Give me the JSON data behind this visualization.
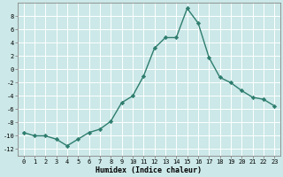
{
  "x": [
    0,
    1,
    2,
    3,
    4,
    5,
    6,
    7,
    8,
    9,
    10,
    11,
    12,
    13,
    14,
    15,
    16,
    17,
    18,
    19,
    20,
    21,
    22,
    23
  ],
  "y": [
    -9.5,
    -10.0,
    -10.0,
    -10.5,
    -11.5,
    -10.5,
    -9.5,
    -9.0,
    -7.8,
    -5.0,
    -4.0,
    -1.0,
    3.2,
    4.8,
    4.8,
    9.2,
    7.0,
    1.8,
    -1.2,
    -2.0,
    -3.2,
    -4.2,
    -4.5,
    -5.5
  ],
  "line_color": "#2e7d6e",
  "marker": "D",
  "marker_size": 2.2,
  "bg_color": "#cce8e8",
  "grid_color": "#ffffff",
  "xlabel": "Humidex (Indice chaleur)",
  "xlim": [
    -0.5,
    23.5
  ],
  "ylim": [
    -13,
    10
  ],
  "yticks": [
    -12,
    -10,
    -8,
    -6,
    -4,
    -2,
    0,
    2,
    4,
    6,
    8
  ],
  "xticks": [
    0,
    1,
    2,
    3,
    4,
    5,
    6,
    7,
    8,
    9,
    10,
    11,
    12,
    13,
    14,
    15,
    16,
    17,
    18,
    19,
    20,
    21,
    22,
    23
  ],
  "xlabel_fontsize": 6.0,
  "tick_fontsize": 5.0,
  "linewidth": 1.0
}
